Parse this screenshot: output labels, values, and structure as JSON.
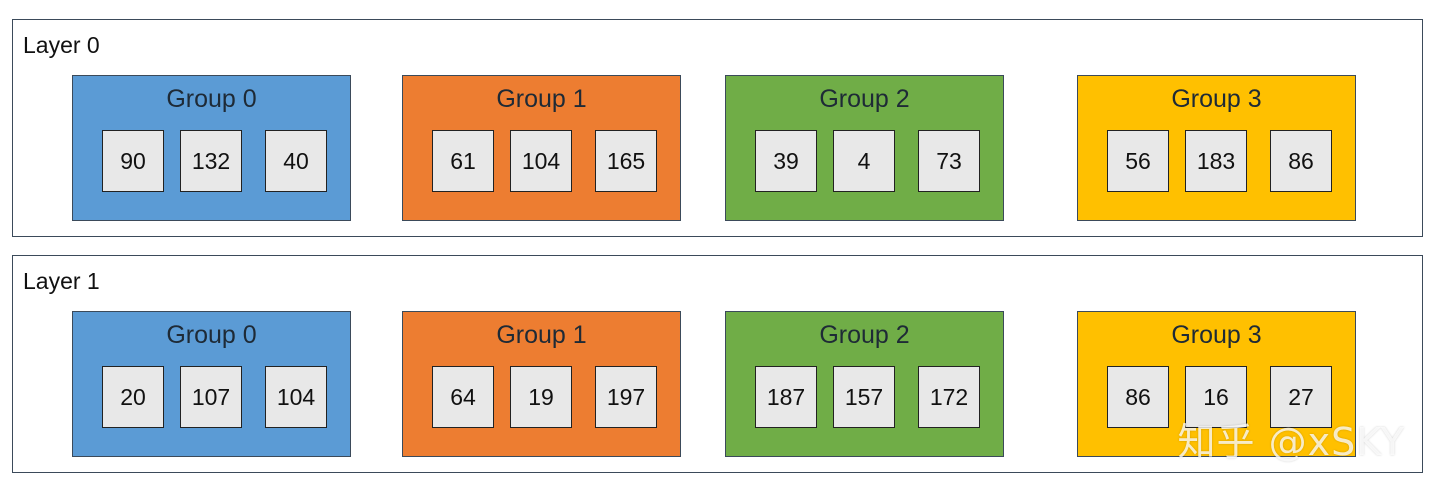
{
  "layers": [
    {
      "title": "Layer 0",
      "groups": [
        {
          "title": "Group 0",
          "color": "#5b9bd5",
          "values": [
            "90",
            "132",
            "40"
          ]
        },
        {
          "title": "Group 1",
          "color": "#ed7d31",
          "values": [
            "61",
            "104",
            "165"
          ]
        },
        {
          "title": "Group 2",
          "color": "#70ad47",
          "values": [
            "39",
            "4",
            "73"
          ]
        },
        {
          "title": "Group 3",
          "color": "#ffc000",
          "values": [
            "56",
            "183",
            "86"
          ]
        }
      ]
    },
    {
      "title": "Layer 1",
      "groups": [
        {
          "title": "Group 0",
          "color": "#5b9bd5",
          "values": [
            "20",
            "107",
            "104"
          ]
        },
        {
          "title": "Group 1",
          "color": "#ed7d31",
          "values": [
            "64",
            "19",
            "197"
          ]
        },
        {
          "title": "Group 2",
          "color": "#70ad47",
          "values": [
            "187",
            "157",
            "172"
          ]
        },
        {
          "title": "Group 3",
          "color": "#ffc000",
          "values": [
            "86",
            "16",
            "27"
          ]
        }
      ]
    }
  ],
  "watermark": "知乎 @xSKY"
}
